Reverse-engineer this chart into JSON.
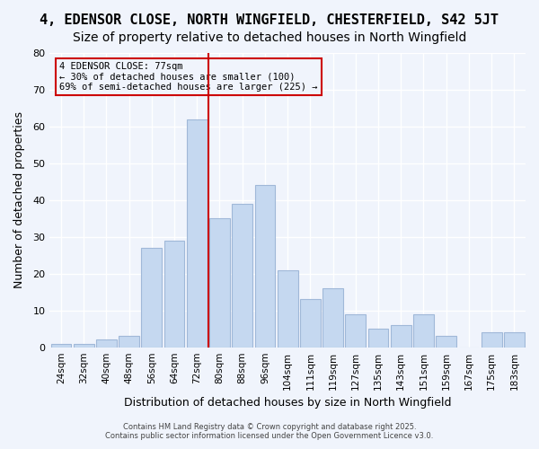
{
  "title": "4, EDENSOR CLOSE, NORTH WINGFIELD, CHESTERFIELD, S42 5JT",
  "subtitle": "Size of property relative to detached houses in North Wingfield",
  "xlabel": "Distribution of detached houses by size in North Wingfield",
  "ylabel": "Number of detached properties",
  "categories": [
    "24sqm",
    "32sqm",
    "40sqm",
    "48sqm",
    "56sqm",
    "64sqm",
    "72sqm",
    "80sqm",
    "88sqm",
    "96sqm",
    "104sqm",
    "111sqm",
    "119sqm",
    "127sqm",
    "135sqm",
    "143sqm",
    "151sqm",
    "159sqm",
    "167sqm",
    "175sqm",
    "183sqm"
  ],
  "values": [
    1,
    1,
    2,
    3,
    27,
    29,
    62,
    35,
    39,
    44,
    21,
    13,
    16,
    9,
    5,
    6,
    9,
    3,
    0,
    4,
    4
  ],
  "bar_color": "#c5d8f0",
  "bar_edgecolor": "#a0b8d8",
  "vline_x": 7,
  "vline_color": "#cc0000",
  "annotation_title": "4 EDENSOR CLOSE: 77sqm",
  "annotation_line1": "← 30% of detached houses are smaller (100)",
  "annotation_line2": "69% of semi-detached houses are larger (225) →",
  "annotation_box_edgecolor": "#cc0000",
  "ylim": [
    0,
    80
  ],
  "yticks": [
    0,
    10,
    20,
    30,
    40,
    50,
    60,
    70,
    80
  ],
  "background_color": "#f0f4fc",
  "grid_color": "#ffffff",
  "footer_line1": "Contains HM Land Registry data © Crown copyright and database right 2025.",
  "footer_line2": "Contains public sector information licensed under the Open Government Licence v3.0.",
  "title_fontsize": 11,
  "subtitle_fontsize": 10,
  "xlabel_fontsize": 9,
  "ylabel_fontsize": 9
}
